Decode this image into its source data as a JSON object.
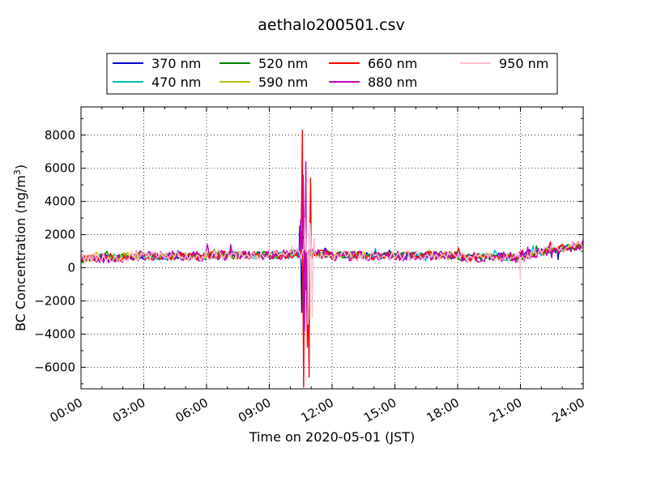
{
  "chart_data": {
    "type": "line",
    "title": "aethalo200501.csv",
    "xlabel": "Time on 2020-05-01 (JST)",
    "ylabel_main": "BC Concentration (ng/m",
    "ylabel_sup": "3",
    "ylabel_close": ")",
    "xlim_hours": [
      0,
      24
    ],
    "ylim": [
      -7300,
      9700
    ],
    "x_ticks": [
      {
        "hour": 0,
        "label": "00:00"
      },
      {
        "hour": 3,
        "label": "03:00"
      },
      {
        "hour": 6,
        "label": "06:00"
      },
      {
        "hour": 9,
        "label": "09:00"
      },
      {
        "hour": 12,
        "label": "12:00"
      },
      {
        "hour": 15,
        "label": "15:00"
      },
      {
        "hour": 18,
        "label": "18:00"
      },
      {
        "hour": 21,
        "label": "21:00"
      },
      {
        "hour": 24,
        "label": "24:00"
      }
    ],
    "y_ticks": [
      {
        "value": 8000,
        "label": "8000"
      },
      {
        "value": 6000,
        "label": "6000"
      },
      {
        "value": 4000,
        "label": "4000"
      },
      {
        "value": 2000,
        "label": "2000"
      },
      {
        "value": 0,
        "label": "0"
      },
      {
        "value": -2000,
        "label": "−2000"
      },
      {
        "value": -4000,
        "label": "−4000"
      },
      {
        "value": -6000,
        "label": "−6000"
      }
    ],
    "grid": true,
    "legend_placement": "top-center",
    "series": [
      {
        "name": "370 nm",
        "color": "#0000cc",
        "seed": 11,
        "amp": 230,
        "events": [
          [
            7.15,
            1200
          ],
          [
            10.45,
            2500
          ],
          [
            10.55,
            -2700
          ],
          [
            10.65,
            1900
          ],
          [
            10.75,
            -1300
          ],
          [
            22.8,
            500
          ]
        ]
      },
      {
        "name": "470 nm",
        "color": "#00bfbf",
        "seed": 23,
        "amp": 230,
        "events": [
          [
            7.15,
            1100
          ],
          [
            10.5,
            2300
          ],
          [
            10.6,
            -2100
          ],
          [
            10.7,
            1700
          ],
          [
            10.8,
            -1100
          ]
        ]
      },
      {
        "name": "520 nm",
        "color": "#008000",
        "seed": 37,
        "amp": 240,
        "events": [
          [
            7.15,
            1300
          ],
          [
            10.55,
            2200
          ],
          [
            10.65,
            -2000
          ],
          [
            10.75,
            1500
          ],
          [
            21.0,
            700
          ]
        ]
      },
      {
        "name": "590 nm",
        "color": "#bfbf00",
        "seed": 41,
        "amp": 230,
        "events": [
          [
            7.15,
            1000
          ],
          [
            10.6,
            1800
          ],
          [
            10.7,
            -1500
          ]
        ]
      },
      {
        "name": "660 nm",
        "color": "#ff0000",
        "seed": 53,
        "amp": 260,
        "events": [
          [
            10.58,
            8300
          ],
          [
            10.64,
            -7200
          ],
          [
            10.7,
            1600
          ],
          [
            10.82,
            -4800
          ],
          [
            10.9,
            -6600
          ],
          [
            10.97,
            5400
          ],
          [
            11.05,
            600
          ]
        ]
      },
      {
        "name": "880 nm",
        "color": "#bf00bf",
        "seed": 67,
        "amp": 320,
        "events": [
          [
            7.15,
            1400
          ],
          [
            10.5,
            2900
          ],
          [
            10.62,
            5600
          ],
          [
            10.68,
            -3800
          ],
          [
            10.75,
            6400
          ],
          [
            10.82,
            -3600
          ],
          [
            22.5,
            600
          ]
        ]
      },
      {
        "name": "950 nm",
        "color": "#ffc0cb",
        "seed": 79,
        "amp": 300,
        "events": [
          [
            10.7,
            3000
          ],
          [
            10.85,
            -3400
          ],
          [
            10.95,
            2700
          ],
          [
            11.05,
            -3000
          ],
          [
            11.15,
            1800
          ],
          [
            21.0,
            -700
          ]
        ]
      }
    ]
  }
}
